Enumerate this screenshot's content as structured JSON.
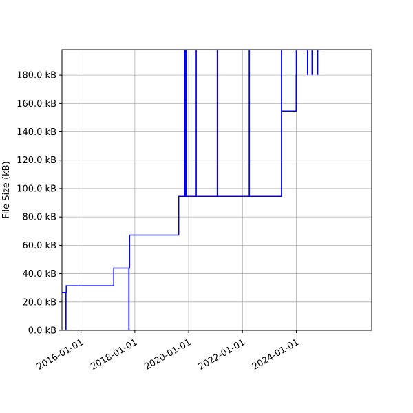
{
  "chart_data": {
    "type": "line",
    "title": "",
    "xlabel": "",
    "ylabel": "File Size (kB)",
    "x_type": "date",
    "xlim": [
      "2015-04-18",
      "2026-10-20"
    ],
    "ylim": [
      0,
      198
    ],
    "x_ticks": [
      "2016-01-01",
      "2018-01-01",
      "2020-01-01",
      "2022-01-01",
      "2024-01-01"
    ],
    "y_ticks": [
      0,
      20,
      40,
      60,
      80,
      100,
      120,
      140,
      160,
      180
    ],
    "y_tick_labels": [
      "0.0 kB",
      "20.0 kB",
      "40.0 kB",
      "60.0 kB",
      "80.0 kB",
      "100.0 kB",
      "120.0 kB",
      "140.0 kB",
      "160.0 kB",
      "180.0 kB"
    ],
    "grid": true,
    "line_color": "#0000ff",
    "grid_color": "#b0b0b0",
    "series": [
      {
        "step": "post",
        "x": [
          "2015-04-18",
          "2015-06-10",
          "2015-06-12",
          "2015-06-15",
          "2015-06-17",
          "2015-07-25",
          "2017-03-20",
          "2017-10-12",
          "2017-10-14",
          "2017-10-22",
          "2017-12-30",
          "2019-08-20",
          "2019-11-08",
          "2019-11-10",
          "2019-11-12",
          "2019-11-14",
          "2019-11-16",
          "2019-11-18",
          "2019-11-20",
          "2019-11-23",
          "2019-11-26",
          "2019-11-29",
          "2020-04-12",
          "2020-04-14",
          "2021-01-23",
          "2021-01-25",
          "2022-04-02",
          "2022-04-04",
          "2023-06-13",
          "2023-06-15",
          "2023-12-30",
          "2024-01-01",
          "2024-06-01",
          "2024-06-04",
          "2024-08-01",
          "2024-08-04",
          "2024-10-15",
          "2024-10-18",
          "2024-12-01"
        ],
        "y": [
          26.8,
          0,
          26.8,
          31.5,
          31.5,
          31.5,
          43.9,
          0,
          43.9,
          67.2,
          67.2,
          94.5,
          198,
          94.5,
          198,
          94.5,
          198,
          94.5,
          198,
          94.5,
          198,
          94.5,
          198,
          94.5,
          198,
          94.5,
          198,
          94.5,
          198,
          154.7,
          180.5,
          198,
          180.5,
          198,
          180.5,
          198,
          180.5,
          198,
          198
        ]
      }
    ]
  }
}
